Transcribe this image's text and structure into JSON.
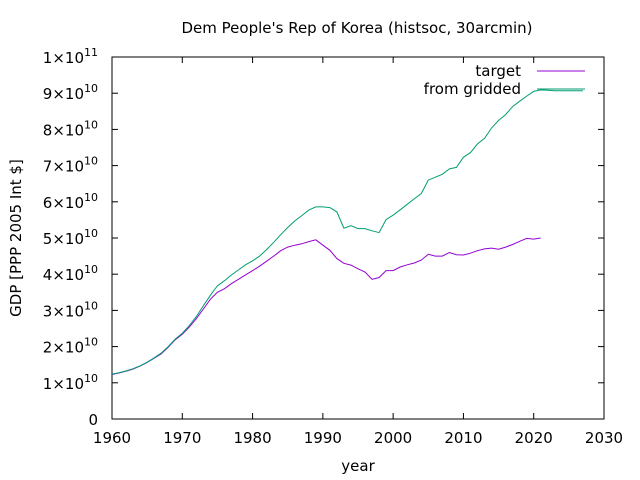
{
  "chart_data": {
    "type": "line",
    "title": "Dem People's Rep of Korea (histsoc, 30arcmin)",
    "xlabel": "year",
    "ylabel": "GDP [PPP 2005 Int $]",
    "xlim": [
      1960,
      2030
    ],
    "ylim": [
      0,
      100000000000
    ],
    "xticks": [
      1960,
      1970,
      1980,
      1990,
      2000,
      2010,
      2020,
      2030
    ],
    "yticks": [
      {
        "value": 0,
        "mantissa": "0",
        "exp": ""
      },
      {
        "value": 10000000000,
        "mantissa": "1×10",
        "exp": "10"
      },
      {
        "value": 20000000000,
        "mantissa": "2×10",
        "exp": "10"
      },
      {
        "value": 30000000000,
        "mantissa": "3×10",
        "exp": "10"
      },
      {
        "value": 40000000000,
        "mantissa": "4×10",
        "exp": "10"
      },
      {
        "value": 50000000000,
        "mantissa": "5×10",
        "exp": "10"
      },
      {
        "value": 60000000000,
        "mantissa": "6×10",
        "exp": "10"
      },
      {
        "value": 70000000000,
        "mantissa": "7×10",
        "exp": "10"
      },
      {
        "value": 80000000000,
        "mantissa": "8×10",
        "exp": "10"
      },
      {
        "value": 90000000000,
        "mantissa": "9×10",
        "exp": "10"
      },
      {
        "value": 100000000000,
        "mantissa": "1×10",
        "exp": "11"
      }
    ],
    "grid": false,
    "legend_position": "top-right",
    "series": [
      {
        "name": "target",
        "color": "#9400d3",
        "x": [
          1960,
          1961,
          1962,
          1963,
          1964,
          1965,
          1966,
          1967,
          1968,
          1969,
          1970,
          1971,
          1972,
          1973,
          1974,
          1975,
          1976,
          1977,
          1978,
          1979,
          1980,
          1981,
          1982,
          1983,
          1984,
          1985,
          1986,
          1987,
          1988,
          1989,
          1990,
          1991,
          1992,
          1993,
          1994,
          1995,
          1996,
          1997,
          1998,
          1999,
          2000,
          2001,
          2002,
          2003,
          2004,
          2005,
          2006,
          2007,
          2008,
          2009,
          2010,
          2011,
          2012,
          2013,
          2014,
          2015,
          2016,
          2017,
          2018,
          2019,
          2020,
          2021
        ],
        "y": [
          12300000000,
          12700000000,
          13200000000,
          13800000000,
          14600000000,
          15600000000,
          16800000000,
          18000000000,
          19800000000,
          21900000000,
          23400000000,
          25400000000,
          27700000000,
          30400000000,
          33100000000,
          35000000000,
          36000000000,
          37400000000,
          38600000000,
          39800000000,
          41000000000,
          42200000000,
          43600000000,
          45000000000,
          46500000000,
          47500000000,
          48000000000,
          48400000000,
          49000000000,
          49500000000,
          48000000000,
          46600000000,
          44300000000,
          43000000000,
          42500000000,
          41500000000,
          40600000000,
          38600000000,
          39100000000,
          41000000000,
          41000000000,
          42000000000,
          42600000000,
          43100000000,
          43900000000,
          45500000000,
          45000000000,
          45000000000,
          46000000000,
          45400000000,
          45300000000,
          45800000000,
          46500000000,
          47000000000,
          47200000000,
          46900000000,
          47500000000,
          48200000000,
          49100000000,
          49900000000,
          49700000000,
          50000000000
        ]
      },
      {
        "name": "from gridded",
        "color": "#009e73",
        "x": [
          1960,
          1961,
          1962,
          1963,
          1964,
          1965,
          1966,
          1967,
          1968,
          1969,
          1970,
          1971,
          1972,
          1973,
          1974,
          1975,
          1976,
          1977,
          1978,
          1979,
          1980,
          1981,
          1982,
          1983,
          1984,
          1985,
          1986,
          1987,
          1988,
          1989,
          1990,
          1991,
          1992,
          1993,
          1994,
          1995,
          1996,
          1997,
          1998,
          1999,
          2000,
          2001,
          2002,
          2003,
          2004,
          2005,
          2006,
          2007,
          2008,
          2009,
          2010,
          2011,
          2012,
          2013,
          2014,
          2015,
          2016,
          2017,
          2018,
          2019,
          2020,
          2021,
          2022,
          2023,
          2024,
          2025,
          2026,
          2027
        ],
        "y": [
          12400000000,
          12800000000,
          13300000000,
          13900000000,
          14700000000,
          15700000000,
          16900000000,
          18200000000,
          20000000000,
          22100000000,
          23700000000,
          25800000000,
          28300000000,
          31300000000,
          34200000000,
          36800000000,
          38200000000,
          39800000000,
          41200000000,
          42600000000,
          43700000000,
          45000000000,
          46800000000,
          48800000000,
          50900000000,
          52900000000,
          54700000000,
          56200000000,
          57700000000,
          58600000000,
          58600000000,
          58400000000,
          57200000000,
          52700000000,
          53400000000,
          52600000000,
          52600000000,
          52000000000,
          51500000000,
          55100000000,
          56300000000,
          57800000000,
          59300000000,
          60800000000,
          62300000000,
          66000000000,
          66800000000,
          67600000000,
          69100000000,
          69500000000,
          72300000000,
          73600000000,
          76000000000,
          77500000000,
          80400000000,
          82500000000,
          84100000000,
          86300000000,
          87800000000,
          89200000000,
          90500000000,
          90900000000,
          90800000000,
          90700000000,
          90700000000,
          90700000000,
          90700000000,
          90700000000
        ]
      }
    ]
  }
}
